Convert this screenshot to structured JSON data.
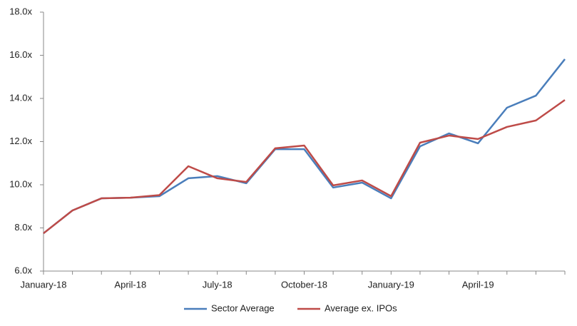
{
  "chart_data": {
    "type": "line",
    "categories": [
      "January-18",
      null,
      null,
      "April-18",
      null,
      null,
      "July-18",
      null,
      null,
      "October-18",
      null,
      null,
      "January-19",
      null,
      null,
      "April-19",
      null,
      null,
      null
    ],
    "series": [
      {
        "name": "Sector Average",
        "color": "#4a7ebb",
        "values": [
          7.75,
          8.81,
          9.37,
          9.4,
          9.47,
          10.3,
          10.4,
          10.07,
          11.65,
          11.65,
          9.87,
          10.1,
          9.37,
          11.78,
          12.38,
          11.92,
          13.57,
          14.13,
          15.82
        ]
      },
      {
        "name": "Average ex. IPOs",
        "color": "#be4b48",
        "values": [
          7.75,
          8.81,
          9.37,
          9.4,
          9.52,
          10.86,
          10.3,
          10.13,
          11.69,
          11.82,
          9.97,
          10.2,
          9.47,
          11.95,
          12.28,
          12.12,
          12.68,
          12.98,
          13.93
        ]
      }
    ],
    "ylim": [
      6,
      18
    ],
    "yticks": [
      {
        "value": 6,
        "label": "6.0x"
      },
      {
        "value": 8,
        "label": "8.0x"
      },
      {
        "value": 10,
        "label": "10.0x"
      },
      {
        "value": 12,
        "label": "12.0x"
      },
      {
        "value": 14,
        "label": "14.0x"
      },
      {
        "value": 16,
        "label": "16.0x"
      },
      {
        "value": 18,
        "label": "18.0x"
      }
    ],
    "grid": false,
    "legend": "bottom"
  }
}
